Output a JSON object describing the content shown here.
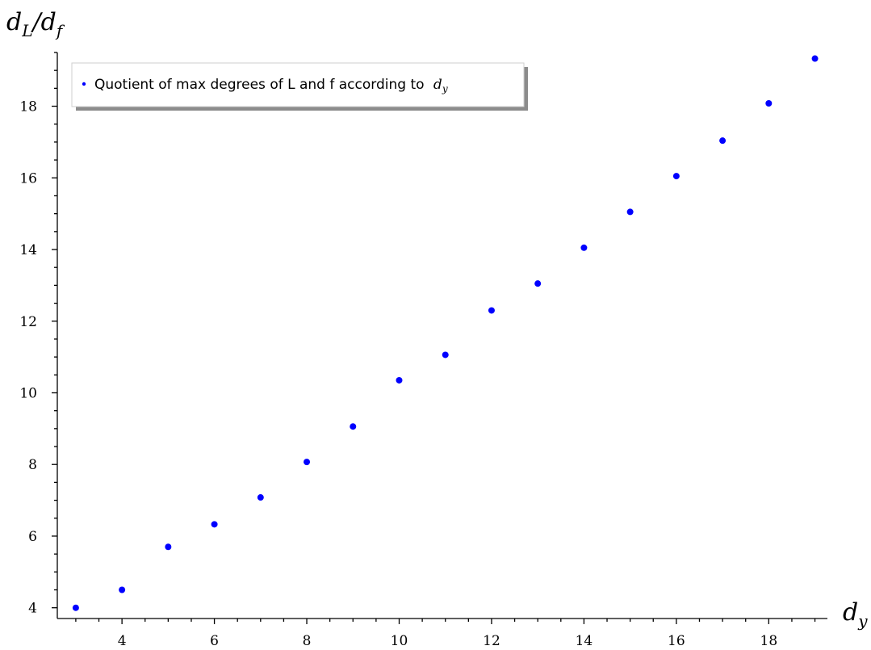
{
  "chart_data": {
    "type": "scatter",
    "marker_color": "#0000ff",
    "grid": false,
    "legend_position": "top-left",
    "legend": "Quotient of max degrees of L and f according to",
    "legend_math": "d",
    "legend_math_sub": "y",
    "xlabel": "d",
    "xlabel_sub": "y",
    "ylabel_parts": [
      "d",
      "L",
      "/",
      "d",
      "f"
    ],
    "xlim": [
      2.6,
      19.2
    ],
    "ylim": [
      3.7,
      19.5
    ],
    "x_ticks": [
      4,
      6,
      8,
      10,
      12,
      14,
      16,
      18
    ],
    "y_ticks": [
      4,
      6,
      8,
      10,
      12,
      14,
      16,
      18
    ],
    "x": [
      3,
      4,
      5,
      6,
      7,
      8,
      9,
      10,
      11,
      12,
      13,
      14,
      15,
      16,
      17,
      18,
      19
    ],
    "y": [
      4.0,
      4.5,
      5.7,
      6.33,
      7.08,
      8.07,
      9.06,
      10.35,
      11.06,
      12.3,
      13.05,
      14.05,
      15.05,
      16.05,
      17.04,
      18.08,
      19.33
    ]
  }
}
